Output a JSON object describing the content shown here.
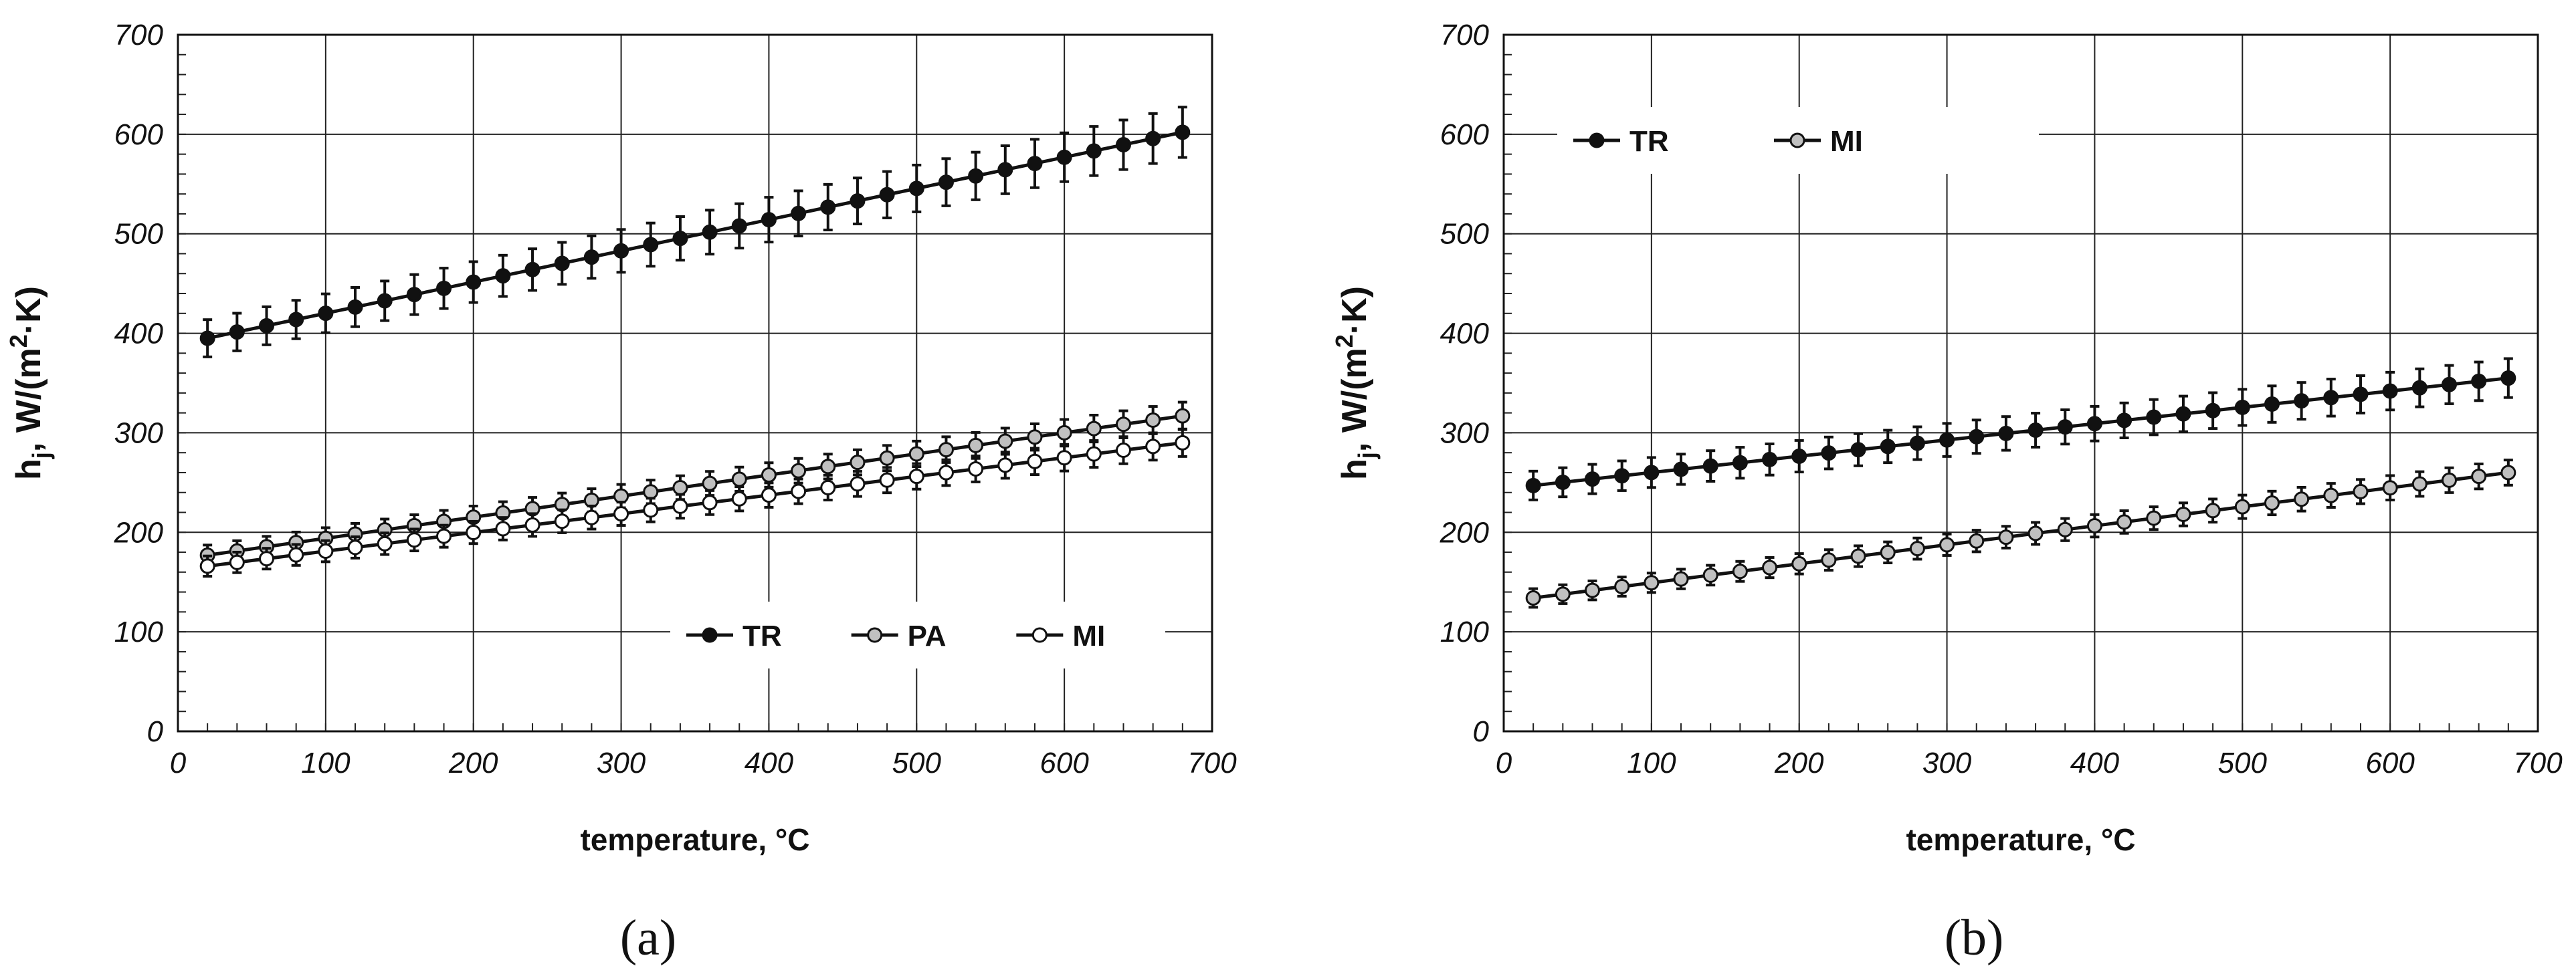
{
  "chart_data": [
    {
      "type": "line",
      "panel_label": "(a)",
      "xlabel": "temperature, °C",
      "ylabel": "h_j, W/(m²·K)",
      "ylabel_parts": {
        "h": "h",
        "sub": "j",
        "unit_start": ", W/(m",
        "sup": "2",
        "unit_end": "·K)"
      },
      "xlim": [
        0,
        700
      ],
      "ylim": [
        0,
        700
      ],
      "xticks": [
        0,
        100,
        200,
        300,
        400,
        500,
        600,
        700
      ],
      "yticks": [
        0,
        100,
        200,
        300,
        400,
        500,
        600,
        700
      ],
      "grid": true,
      "legend_position": "bottom-right",
      "x_range": {
        "start": 20,
        "end": 680,
        "step": 20
      },
      "series": [
        {
          "name": "TR",
          "marker": "filled-black",
          "y_start": 395,
          "y_end": 602,
          "error": 22
        },
        {
          "name": "PA",
          "marker": "filled-gray",
          "y_start": 177,
          "y_end": 317,
          "error": 12
        },
        {
          "name": "MI",
          "marker": "open-white",
          "y_start": 166,
          "y_end": 290,
          "error": 12
        }
      ]
    },
    {
      "type": "line",
      "panel_label": "(b)",
      "xlabel": "temperature, °C",
      "ylabel": "h_j, W/(m²·K)",
      "ylabel_parts": {
        "h": "h",
        "sub": "j",
        "unit_start": ", W/(m",
        "sup": "2",
        "unit_end": "·K)"
      },
      "xlim": [
        0,
        700
      ],
      "ylim": [
        0,
        700
      ],
      "xticks": [
        0,
        100,
        200,
        300,
        400,
        500,
        600,
        700
      ],
      "yticks": [
        0,
        100,
        200,
        300,
        400,
        500,
        600,
        700
      ],
      "grid": true,
      "legend_position": "top-left",
      "x_range": {
        "start": 20,
        "end": 680,
        "step": 20
      },
      "series": [
        {
          "name": "TR",
          "marker": "filled-black",
          "y_start": 247,
          "y_end": 355,
          "error": 17
        },
        {
          "name": "MI",
          "marker": "filled-gray",
          "y_start": 134,
          "y_end": 260,
          "error": 11
        }
      ]
    }
  ]
}
